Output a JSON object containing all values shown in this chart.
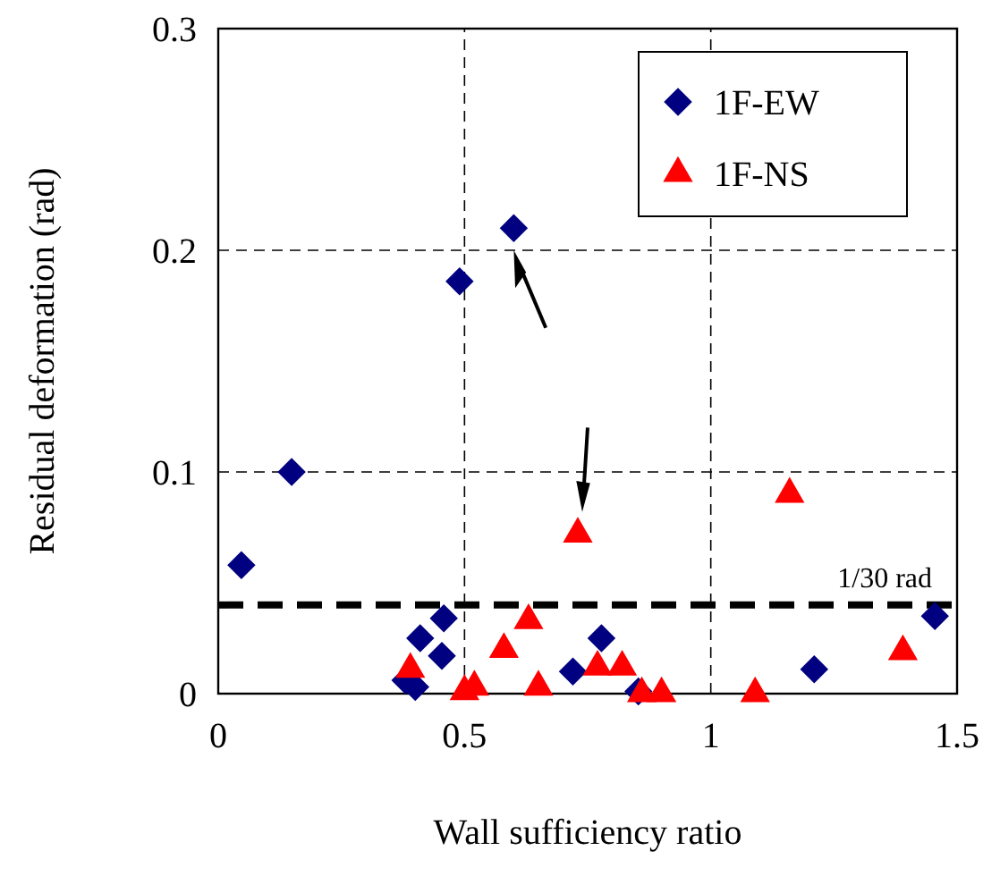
{
  "chart_data": {
    "type": "scatter",
    "xlabel": "Wall sufficiency ratio",
    "ylabel": "Residual deformation (rad)",
    "xlim": [
      0,
      1.5
    ],
    "ylim": [
      0,
      0.3
    ],
    "xticks": [
      0,
      0.5,
      1,
      1.5
    ],
    "yticks": [
      0,
      0.1,
      0.2,
      0.3
    ],
    "grid": true,
    "legend": "top right",
    "series": [
      {
        "name": "1F-EW",
        "color": "#000080",
        "marker": "diamond",
        "x": [
          0.047,
          0.149,
          0.49,
          0.6,
          0.458,
          0.41,
          0.454,
          0.38,
          0.4,
          0.778,
          0.72,
          0.853,
          1.21,
          1.455
        ],
        "values": [
          0.058,
          0.1,
          0.186,
          0.21,
          0.034,
          0.025,
          0.017,
          0.006,
          0.003,
          0.025,
          0.01,
          0.001,
          0.011,
          0.035
        ]
      },
      {
        "name": "1F-NS",
        "color": "#ff0000",
        "marker": "triangle",
        "x": [
          0.39,
          0.63,
          0.58,
          0.5,
          0.52,
          0.65,
          0.77,
          0.82,
          0.86,
          0.9,
          1.09,
          1.39,
          0.73,
          1.16
        ],
        "values": [
          0.011,
          0.033,
          0.02,
          0.001,
          0.003,
          0.003,
          0.012,
          0.012,
          0,
          0,
          0,
          0.019,
          0.072,
          0.09
        ]
      }
    ],
    "ref_lines": [
      {
        "axis": "y",
        "value": 0.04,
        "label": "1/30 rad",
        "color": "#000000",
        "line_style": "dashed"
      }
    ]
  }
}
